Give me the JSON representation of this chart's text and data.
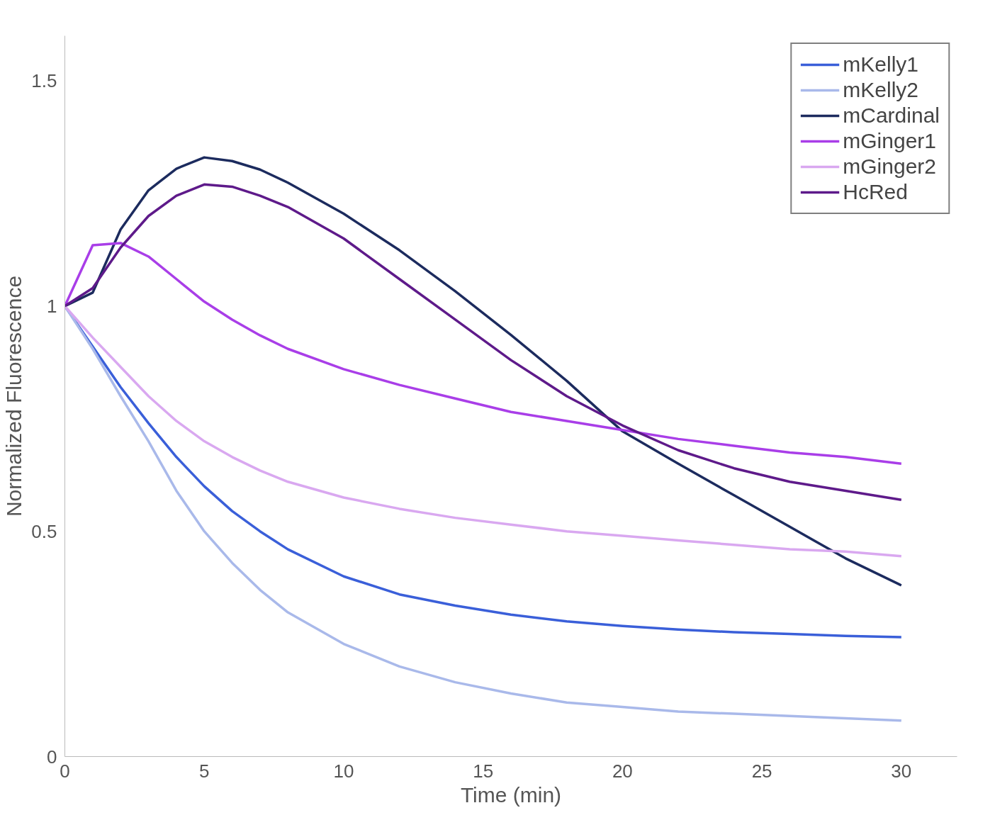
{
  "chart_data": {
    "type": "line",
    "xlabel": "Time (min)",
    "ylabel": "Normalized Fluorescence",
    "x": [
      0,
      1,
      2,
      3,
      4,
      5,
      6,
      7,
      8,
      10,
      12,
      14,
      16,
      18,
      20,
      22,
      24,
      26,
      28,
      30
    ],
    "xlim": [
      0,
      32
    ],
    "xticks": [
      0,
      5,
      10,
      15,
      20,
      25,
      30
    ],
    "ylim": [
      0,
      1.6
    ],
    "yticks": [
      0,
      {
        "value": 0.5,
        "label": "0.5"
      },
      1,
      {
        "value": 1.5,
        "label": "1.5"
      }
    ],
    "grid": false,
    "legend": "top right",
    "line_style": "solid",
    "series": [
      {
        "name": "mKelly1",
        "color": "#3a5fd9",
        "values": [
          1,
          0.91,
          0.82,
          0.74,
          0.665,
          0.6,
          0.545,
          0.5,
          0.46,
          0.4,
          0.36,
          0.335,
          0.315,
          0.3,
          0.29,
          0.282,
          0.276,
          0.272,
          0.268,
          0.265
        ]
      },
      {
        "name": "mKelly2",
        "color": "#a9b9ea",
        "values": [
          1,
          0.905,
          0.8,
          0.7,
          0.59,
          0.5,
          0.43,
          0.37,
          0.32,
          0.25,
          0.2,
          0.165,
          0.14,
          0.12,
          0.11,
          0.1,
          0.095,
          0.09,
          0.085,
          0.08
        ]
      },
      {
        "name": "mCardinal",
        "color": "#1c2b5e",
        "values": [
          1,
          1.03,
          1.17,
          1.257,
          1.305,
          1.33,
          1.322,
          1.303,
          1.274,
          1.205,
          1.124,
          1.033,
          0.936,
          0.834,
          0.722,
          0.65,
          0.58,
          0.51,
          0.44,
          0.38
        ]
      },
      {
        "name": "mGinger1",
        "color": "#a93ee8",
        "values": [
          1,
          1.135,
          1.14,
          1.11,
          1.06,
          1.01,
          0.97,
          0.935,
          0.905,
          0.86,
          0.825,
          0.795,
          0.765,
          0.745,
          0.725,
          0.705,
          0.69,
          0.675,
          0.665,
          0.65
        ]
      },
      {
        "name": "mGinger2",
        "color": "#d9a8f0",
        "values": [
          1,
          0.93,
          0.865,
          0.8,
          0.745,
          0.7,
          0.665,
          0.635,
          0.61,
          0.575,
          0.55,
          0.53,
          0.515,
          0.5,
          0.49,
          0.48,
          0.47,
          0.46,
          0.455,
          0.445
        ]
      },
      {
        "name": "HcRed",
        "color": "#5e1a8a",
        "values": [
          1,
          1.04,
          1.13,
          1.2,
          1.245,
          1.27,
          1.265,
          1.245,
          1.22,
          1.15,
          1.06,
          0.97,
          0.88,
          0.8,
          0.735,
          0.68,
          0.64,
          0.61,
          0.59,
          0.57
        ]
      }
    ]
  }
}
